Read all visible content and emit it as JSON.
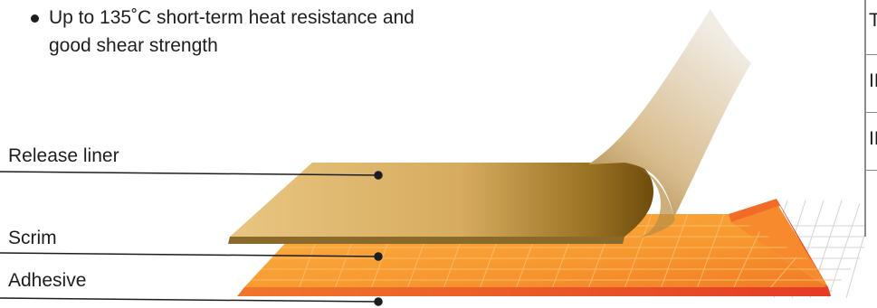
{
  "bullet": {
    "line1": "Up to 135˚C short-term heat resistance and",
    "line2": "good shear strength"
  },
  "layers": {
    "release_liner": "Release liner",
    "scrim": "Scrim",
    "adhesive": "Adhesive"
  },
  "side_table": {
    "row1": "T",
    "row2": "IN",
    "row3": "IN"
  },
  "colors": {
    "liner_light": "#e6c27e",
    "liner_dark": "#7a560f",
    "adhesive_orange": "#f9a93a",
    "adhesive_red": "#e8472b",
    "text": "#1d1d1f"
  }
}
